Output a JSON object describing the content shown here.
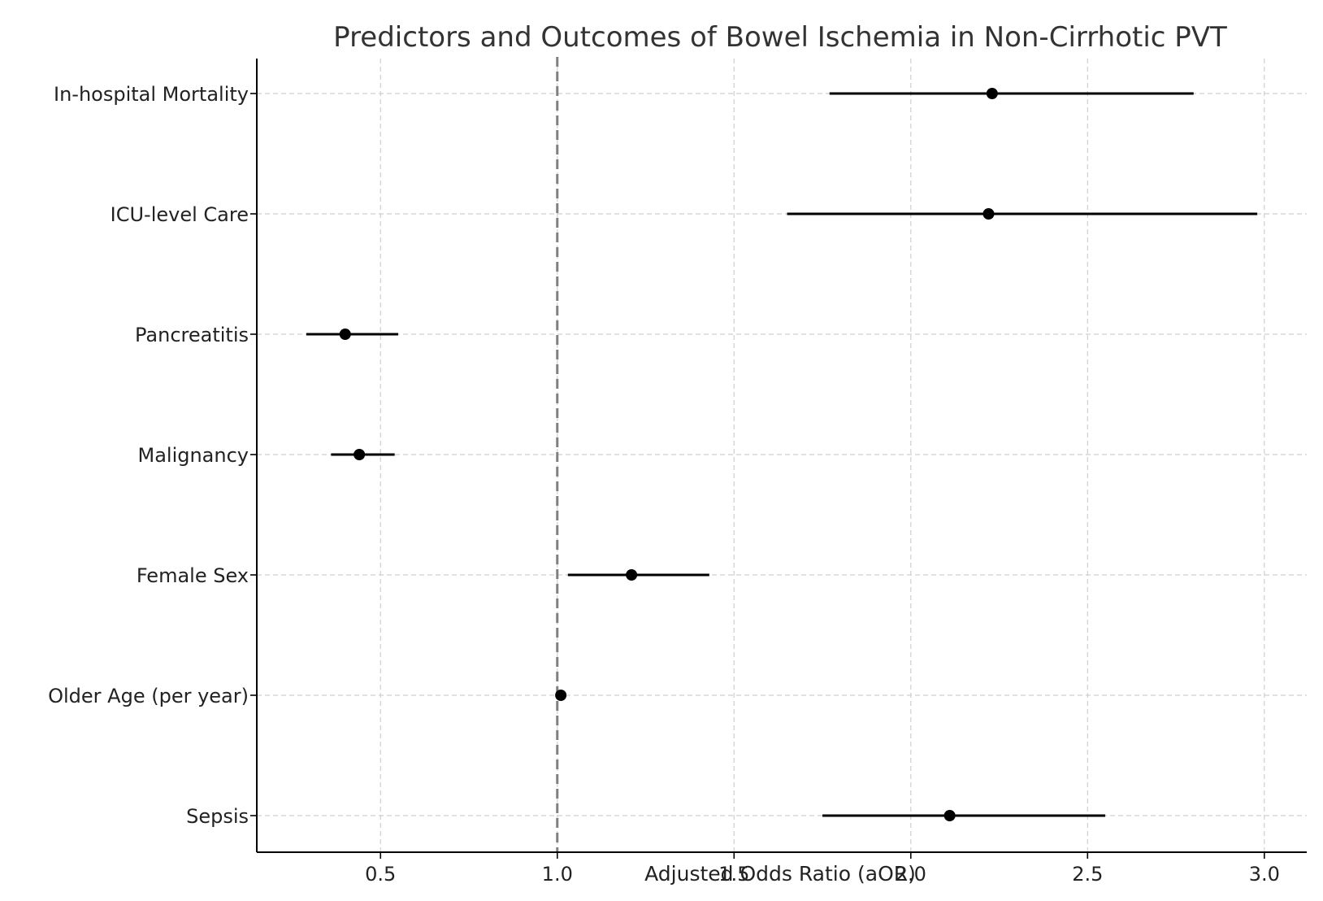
{
  "chart_data": {
    "type": "scatter",
    "subtype": "forest-plot",
    "title": "Predictors and Outcomes of Bowel Ischemia in Non-Cirrhotic PVT",
    "xlabel": "Adjusted Odds Ratio (aOR)",
    "ylabel": "",
    "xlim": [
      0.15,
      3.12
    ],
    "xticks": [
      0.5,
      1.0,
      1.5,
      2.0,
      2.5,
      3.0
    ],
    "xtick_labels": [
      "0.5",
      "1.0",
      "1.5",
      "2.0",
      "2.5",
      "3.0"
    ],
    "reference_line": 1.0,
    "grid": true,
    "categories": [
      "In-hospital Mortality",
      "ICU-level Care",
      "Pancreatitis",
      "Malignancy",
      "Female Sex",
      "Older Age (per year)",
      "Sepsis"
    ],
    "series": [
      {
        "values": [
          2.23,
          2.22,
          0.4,
          0.44,
          1.21,
          1.01,
          2.11
        ],
        "ci_lower": [
          1.77,
          1.65,
          0.29,
          0.36,
          1.03,
          1.0,
          1.75
        ],
        "ci_upper": [
          2.8,
          2.98,
          0.55,
          0.54,
          1.43,
          1.02,
          2.55
        ]
      }
    ],
    "colors": {
      "points": "#000000",
      "reference_line": "#808080",
      "grid": "#cfcfcf"
    }
  }
}
